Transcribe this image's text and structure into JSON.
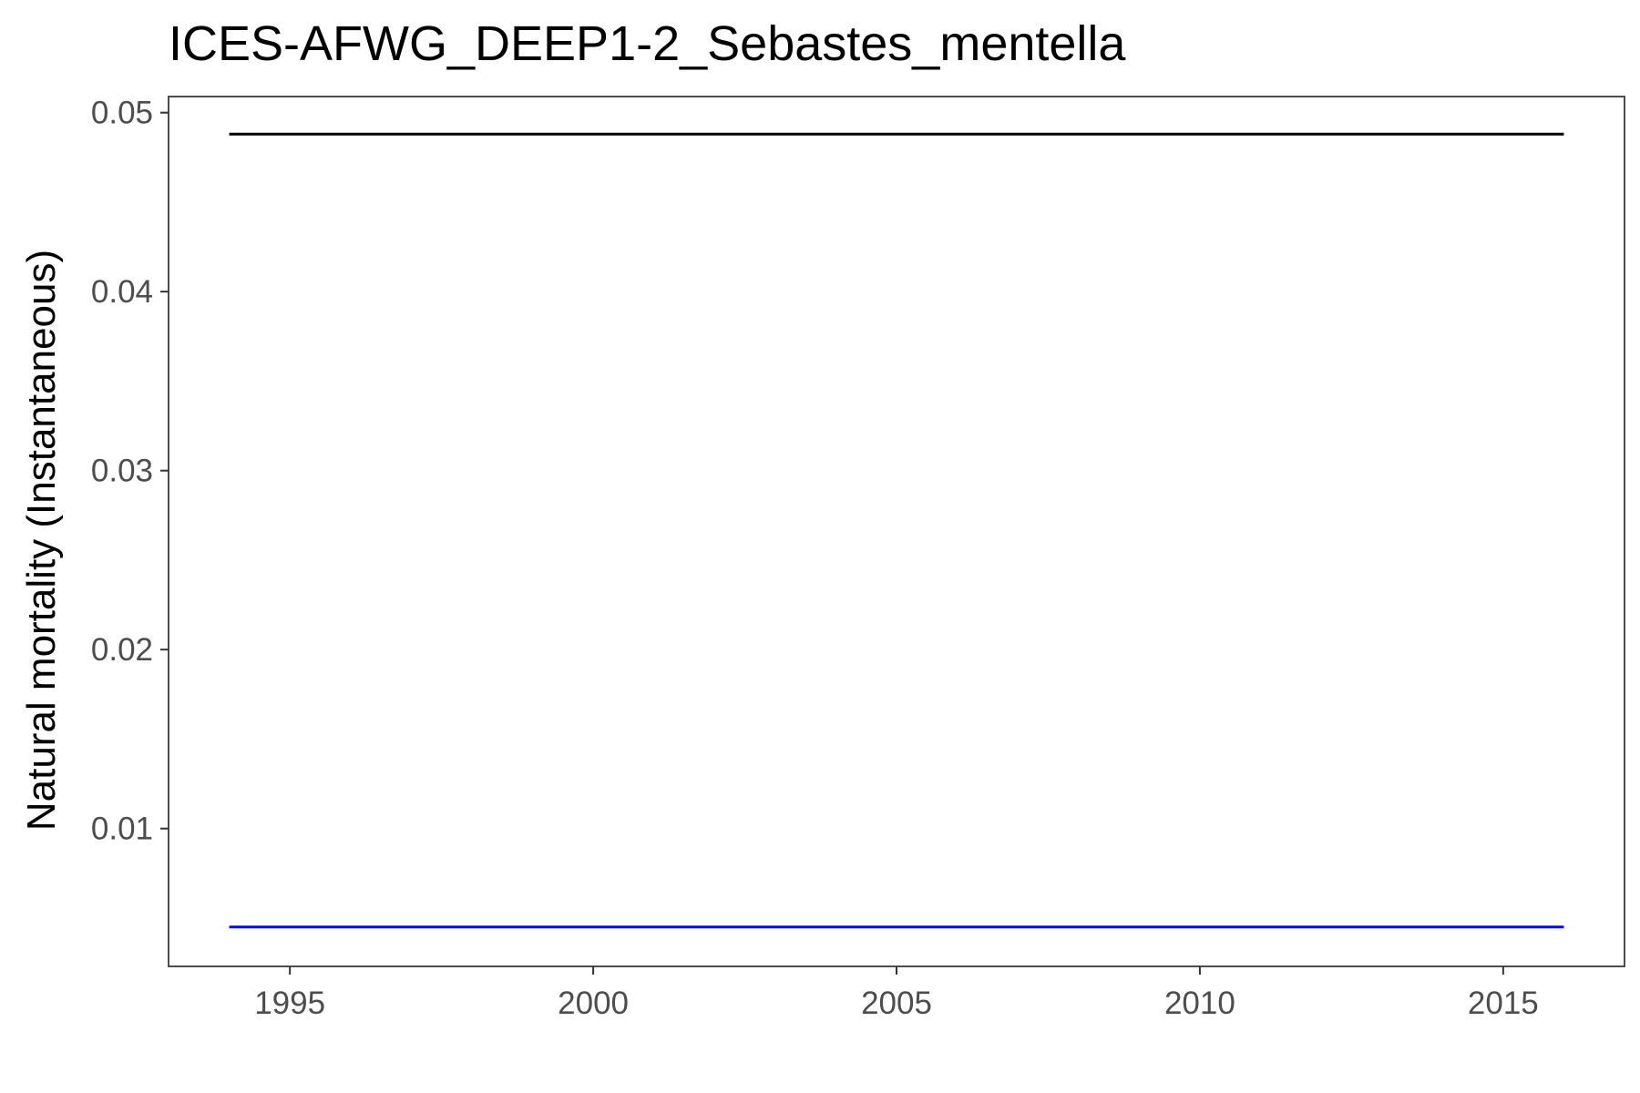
{
  "chart_data": {
    "type": "line",
    "title": "ICES-AFWG_DEEP1-2_Sebastes_mentella",
    "xlabel": "",
    "ylabel": "Natural mortality (Instantaneous)",
    "xlim": [
      1993,
      2017
    ],
    "ylim": [
      0.0023,
      0.0509
    ],
    "xticks": [
      1995,
      2000,
      2005,
      2010,
      2015
    ],
    "xtick_labels": [
      "1995",
      "2000",
      "2005",
      "2010",
      "2015"
    ],
    "yticks": [
      0.01,
      0.02,
      0.03,
      0.04,
      0.05
    ],
    "ytick_labels": [
      "0.01",
      "0.02",
      "0.03",
      "0.04",
      "0.05"
    ],
    "grid": false,
    "series": [
      {
        "color": "#000000",
        "x": [
          1994,
          1995,
          1996,
          1997,
          1998,
          1999,
          2000,
          2001,
          2002,
          2003,
          2004,
          2005,
          2006,
          2007,
          2008,
          2009,
          2010,
          2011,
          2012,
          2013,
          2014,
          2015,
          2016
        ],
        "values": [
          0.0488,
          0.0488,
          0.0488,
          0.0488,
          0.0488,
          0.0488,
          0.0488,
          0.0488,
          0.0488,
          0.0488,
          0.0488,
          0.0488,
          0.0488,
          0.0488,
          0.0488,
          0.0488,
          0.0488,
          0.0488,
          0.0488,
          0.0488,
          0.0488,
          0.0488,
          0.0488
        ]
      },
      {
        "color": "#0000ff",
        "x": [
          1994,
          1995,
          1996,
          1997,
          1998,
          1999,
          2000,
          2001,
          2002,
          2003,
          2004,
          2005,
          2006,
          2007,
          2008,
          2009,
          2010,
          2011,
          2012,
          2013,
          2014,
          2015,
          2016
        ],
        "values": [
          0.0045,
          0.0045,
          0.0045,
          0.0045,
          0.0045,
          0.0045,
          0.0045,
          0.0045,
          0.0045,
          0.0045,
          0.0045,
          0.0045,
          0.0045,
          0.0045,
          0.0045,
          0.0045,
          0.0045,
          0.0045,
          0.0045,
          0.0045,
          0.0045,
          0.0045,
          0.0045
        ]
      }
    ]
  }
}
